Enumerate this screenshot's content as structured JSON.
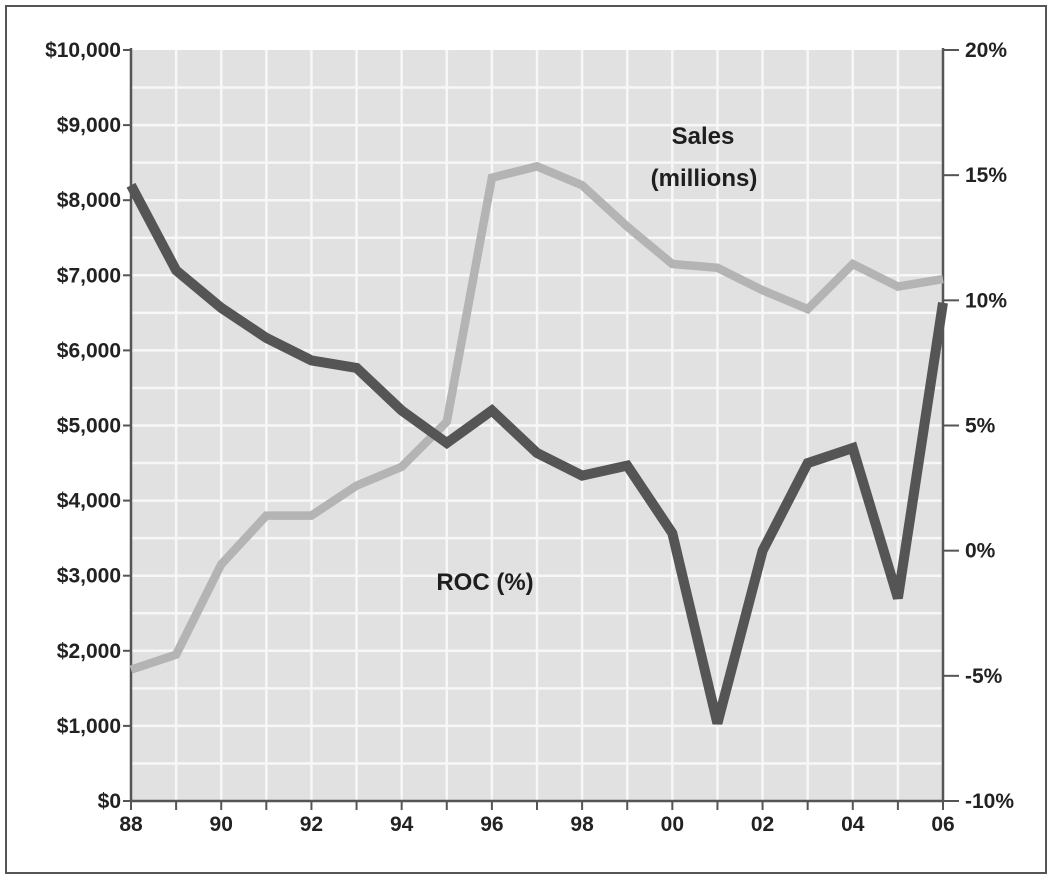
{
  "chart_data": {
    "type": "line",
    "title": "",
    "xlabel": "",
    "ylabel": "",
    "x": [
      "88",
      "89",
      "90",
      "91",
      "92",
      "93",
      "94",
      "95",
      "96",
      "97",
      "98",
      "99",
      "00",
      "01",
      "02",
      "03",
      "04",
      "05",
      "06"
    ],
    "x_tick_labels": [
      "88",
      "90",
      "92",
      "94",
      "96",
      "98",
      "00",
      "02",
      "04",
      "06"
    ],
    "ylim_left": [
      0,
      10000
    ],
    "ylim_right": [
      -10,
      20
    ],
    "y_left_tick_labels": [
      "$0",
      "$1,000",
      "$2,000",
      "$3,000",
      "$4,000",
      "$5,000",
      "$6,000",
      "$7,000",
      "$8,000",
      "$9,000",
      "$10,000"
    ],
    "y_right_tick_labels": [
      "-10%",
      "-5%",
      "0%",
      "5%",
      "10%",
      "15%",
      "20%"
    ],
    "grid": true,
    "series": [
      {
        "name": "Sales (millions)",
        "axis": "left",
        "color": "#b4b4b4",
        "values": [
          1750,
          1950,
          3150,
          3800,
          3800,
          4200,
          4450,
          5050,
          8300,
          8450,
          8200,
          7650,
          7150,
          7100,
          6800,
          6550,
          7150,
          6850,
          6950
        ]
      },
      {
        "name": "ROC (%)",
        "axis": "right",
        "color": "#555555",
        "values": [
          14.6,
          11.2,
          9.7,
          8.5,
          7.6,
          7.3,
          5.6,
          4.3,
          5.6,
          3.9,
          3.0,
          3.4,
          0.7,
          -6.9,
          0.0,
          3.5,
          4.1,
          -1.9,
          9.9
        ]
      }
    ],
    "annotations": [
      {
        "text": "Sales",
        "series": "Sales (millions)"
      },
      {
        "text": "(millions)",
        "series": "Sales (millions)"
      },
      {
        "text": "ROC (%)",
        "series": "ROC (%)"
      }
    ],
    "colors": {
      "plot_background": "#e1e1e1",
      "gridline": "#f7f7f7",
      "axis": "#555555"
    }
  }
}
